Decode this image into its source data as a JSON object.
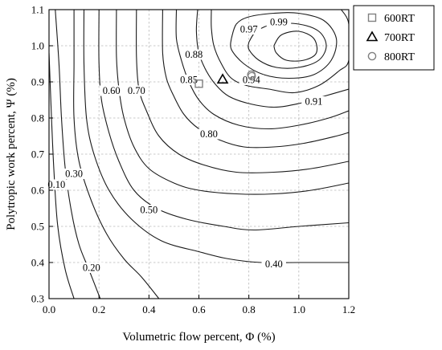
{
  "chart_data": {
    "type": "contour",
    "xlabel": "Volumetric flow percent, Φ (%)",
    "ylabel": "Polytropic work percent, Ψ (%)",
    "xlim": [
      0.0,
      1.2
    ],
    "ylim": [
      0.3,
      1.1
    ],
    "grid": true,
    "xticks": [
      {
        "value": 0.0,
        "label": "0.0"
      },
      {
        "value": 0.2,
        "label": "0.2"
      },
      {
        "value": 0.4,
        "label": "0.4"
      },
      {
        "value": 0.6,
        "label": "0.6"
      },
      {
        "value": 0.8,
        "label": "0.8"
      },
      {
        "value": 1.0,
        "label": "1.0"
      },
      {
        "value": 1.2,
        "label": "1.2"
      }
    ],
    "yticks": [
      {
        "value": 0.3,
        "label": "0.3"
      },
      {
        "value": 0.4,
        "label": "0.4"
      },
      {
        "value": 0.5,
        "label": "0.5"
      },
      {
        "value": 0.6,
        "label": "0.6"
      },
      {
        "value": 0.7,
        "label": "0.7"
      },
      {
        "value": 0.8,
        "label": "0.8"
      },
      {
        "value": 0.9,
        "label": "0.9"
      },
      {
        "value": 1.0,
        "label": "1.0"
      },
      {
        "value": 1.1,
        "label": "1.1"
      }
    ],
    "contours": [
      {
        "level": "0.10",
        "points": [
          [
            0.0,
            0.98
          ],
          [
            0.01,
            0.8
          ],
          [
            0.02,
            0.65
          ],
          [
            0.035,
            0.5
          ],
          [
            0.065,
            0.38
          ],
          [
            0.1,
            0.3
          ]
        ]
      },
      {
        "level": "0.20",
        "points": [
          [
            0.025,
            1.1
          ],
          [
            0.04,
            0.95
          ],
          [
            0.05,
            0.8
          ],
          [
            0.065,
            0.66
          ],
          [
            0.09,
            0.54
          ],
          [
            0.12,
            0.45
          ],
          [
            0.16,
            0.38
          ],
          [
            0.205,
            0.3
          ]
        ]
      },
      {
        "level": "0.30",
        "points": [
          [
            0.1,
            1.1
          ],
          [
            0.1,
            0.95
          ],
          [
            0.1,
            0.8
          ],
          [
            0.12,
            0.68
          ],
          [
            0.17,
            0.57
          ],
          [
            0.23,
            0.48
          ],
          [
            0.3,
            0.41
          ],
          [
            0.37,
            0.36
          ],
          [
            0.44,
            0.3
          ]
        ]
      },
      {
        "level": "0.40",
        "points": [
          [
            0.14,
            1.1
          ],
          [
            0.14,
            0.95
          ],
          [
            0.15,
            0.8
          ],
          [
            0.18,
            0.7
          ],
          [
            0.24,
            0.6
          ],
          [
            0.33,
            0.52
          ],
          [
            0.45,
            0.46
          ],
          [
            0.6,
            0.43
          ],
          [
            0.72,
            0.41
          ],
          [
            0.85,
            0.4
          ],
          [
            1.0,
            0.4
          ],
          [
            1.2,
            0.4
          ]
        ]
      },
      {
        "level": "0.50",
        "points": [
          [
            0.2,
            1.1
          ],
          [
            0.2,
            0.95
          ],
          [
            0.21,
            0.85
          ],
          [
            0.24,
            0.76
          ],
          [
            0.28,
            0.68
          ],
          [
            0.34,
            0.6
          ],
          [
            0.43,
            0.55
          ],
          [
            0.55,
            0.52
          ],
          [
            0.7,
            0.5
          ],
          [
            0.82,
            0.49
          ],
          [
            1.0,
            0.5
          ],
          [
            1.2,
            0.51
          ]
        ]
      },
      {
        "level": "0.60",
        "points": [
          [
            0.27,
            1.1
          ],
          [
            0.27,
            0.97
          ],
          [
            0.28,
            0.88
          ],
          [
            0.3,
            0.8
          ],
          [
            0.34,
            0.72
          ],
          [
            0.4,
            0.66
          ],
          [
            0.5,
            0.62
          ],
          [
            0.6,
            0.6
          ],
          [
            0.75,
            0.59
          ],
          [
            0.9,
            0.59
          ],
          [
            1.05,
            0.6
          ],
          [
            1.2,
            0.62
          ]
        ]
      },
      {
        "level": "0.70",
        "points": [
          [
            0.35,
            1.1
          ],
          [
            0.35,
            0.97
          ],
          [
            0.36,
            0.88
          ],
          [
            0.39,
            0.82
          ],
          [
            0.44,
            0.75
          ],
          [
            0.52,
            0.7
          ],
          [
            0.62,
            0.67
          ],
          [
            0.75,
            0.65
          ],
          [
            0.9,
            0.65
          ],
          [
            1.05,
            0.66
          ],
          [
            1.2,
            0.68
          ]
        ]
      },
      {
        "level": "0.80",
        "points": [
          [
            0.455,
            1.1
          ],
          [
            0.455,
            0.98
          ],
          [
            0.47,
            0.91
          ],
          [
            0.5,
            0.86
          ],
          [
            0.54,
            0.81
          ],
          [
            0.6,
            0.77
          ],
          [
            0.68,
            0.74
          ],
          [
            0.78,
            0.72
          ],
          [
            0.9,
            0.72
          ],
          [
            1.02,
            0.73
          ],
          [
            1.15,
            0.75
          ],
          [
            1.2,
            0.76
          ]
        ]
      },
      {
        "level": "0.85",
        "points": [
          [
            0.51,
            1.1
          ],
          [
            0.51,
            1.02
          ],
          [
            0.53,
            0.96
          ],
          [
            0.56,
            0.9
          ],
          [
            0.6,
            0.85
          ],
          [
            0.66,
            0.81
          ],
          [
            0.76,
            0.78
          ],
          [
            0.88,
            0.77
          ],
          [
            1.0,
            0.78
          ],
          [
            1.12,
            0.8
          ],
          [
            1.2,
            0.82
          ]
        ]
      },
      {
        "level": "0.88",
        "points": [
          [
            0.595,
            1.1
          ],
          [
            0.59,
            1.04
          ],
          [
            0.6,
            0.98
          ],
          [
            0.63,
            0.93
          ],
          [
            0.67,
            0.89
          ],
          [
            0.72,
            0.86
          ],
          [
            0.8,
            0.84
          ],
          [
            0.9,
            0.83
          ],
          [
            1.0,
            0.84
          ],
          [
            1.1,
            0.86
          ],
          [
            1.2,
            0.88
          ]
        ]
      },
      {
        "level": "0.91",
        "points": [
          [
            0.65,
            1.1
          ],
          [
            0.65,
            1.05
          ],
          [
            0.66,
            1.0
          ],
          [
            0.69,
            0.95
          ],
          [
            0.73,
            0.91
          ],
          [
            0.79,
            0.89
          ],
          [
            0.88,
            0.88
          ],
          [
            0.98,
            0.87
          ],
          [
            1.08,
            0.89
          ],
          [
            1.16,
            0.93
          ],
          [
            1.2,
            0.96
          ],
          [
            1.2,
            1.06
          ],
          [
            1.17,
            1.1
          ]
        ]
      },
      {
        "level": "0.94",
        "points": [
          [
            0.73,
            1.02
          ],
          [
            0.75,
            1.06
          ],
          [
            0.8,
            1.08
          ],
          [
            0.9,
            1.09
          ],
          [
            1.0,
            1.09
          ],
          [
            1.1,
            1.07
          ],
          [
            1.15,
            1.02
          ],
          [
            1.13,
            0.96
          ],
          [
            1.06,
            0.92
          ],
          [
            0.96,
            0.91
          ],
          [
            0.86,
            0.92
          ],
          [
            0.78,
            0.95
          ],
          [
            0.73,
            0.99
          ],
          [
            0.73,
            1.02
          ]
        ]
      },
      {
        "level": "0.97",
        "points": [
          [
            0.8,
            1.01
          ],
          [
            0.83,
            1.04
          ],
          [
            0.9,
            1.06
          ],
          [
            1.0,
            1.06
          ],
          [
            1.08,
            1.04
          ],
          [
            1.11,
            1.0
          ],
          [
            1.08,
            0.96
          ],
          [
            1.0,
            0.94
          ],
          [
            0.91,
            0.94
          ],
          [
            0.84,
            0.96
          ],
          [
            0.8,
            0.99
          ],
          [
            0.8,
            1.01
          ]
        ]
      },
      {
        "level": "0.99",
        "points": [
          [
            0.9,
            1.0
          ],
          [
            0.93,
            1.03
          ],
          [
            1.0,
            1.04
          ],
          [
            1.06,
            1.02
          ],
          [
            1.07,
            0.98
          ],
          [
            1.02,
            0.96
          ],
          [
            0.95,
            0.96
          ],
          [
            0.91,
            0.98
          ],
          [
            0.9,
            1.0
          ]
        ]
      }
    ],
    "contour_labels": [
      {
        "text": "0.10",
        "x": 0.03,
        "y": 0.61
      },
      {
        "text": "0.20",
        "x": 0.17,
        "y": 0.38
      },
      {
        "text": "0.30",
        "x": 0.1,
        "y": 0.64
      },
      {
        "text": "0.40",
        "x": 0.9,
        "y": 0.39
      },
      {
        "text": "0.50",
        "x": 0.4,
        "y": 0.54
      },
      {
        "text": "0.60",
        "x": 0.25,
        "y": 0.87
      },
      {
        "text": "0.70",
        "x": 0.35,
        "y": 0.87
      },
      {
        "text": "0.80",
        "x": 0.64,
        "y": 0.75
      },
      {
        "text": "0.85",
        "x": 0.56,
        "y": 0.9
      },
      {
        "text": "0.88",
        "x": 0.58,
        "y": 0.97
      },
      {
        "text": "0.91",
        "x": 1.06,
        "y": 0.84
      },
      {
        "text": "0.94",
        "x": 0.81,
        "y": 0.9
      },
      {
        "text": "0.97",
        "x": 0.8,
        "y": 1.04
      },
      {
        "text": "0.99",
        "x": 0.92,
        "y": 1.06
      }
    ],
    "series": [
      {
        "name": "600RT",
        "marker": "square",
        "color": "#808080",
        "x": 0.6,
        "y": 0.895
      },
      {
        "name": "700RT",
        "marker": "triangle",
        "color": "#000000",
        "x": 0.695,
        "y": 0.907
      },
      {
        "name": "800RT",
        "marker": "circle",
        "color": "#808080",
        "x": 0.81,
        "y": 0.92
      }
    ],
    "legend": {
      "placement": "outside-top-right",
      "entries": [
        {
          "label": "600RT",
          "marker": "square"
        },
        {
          "label": "700RT",
          "marker": "triangle"
        },
        {
          "label": "800RT",
          "marker": "circle"
        }
      ]
    }
  }
}
